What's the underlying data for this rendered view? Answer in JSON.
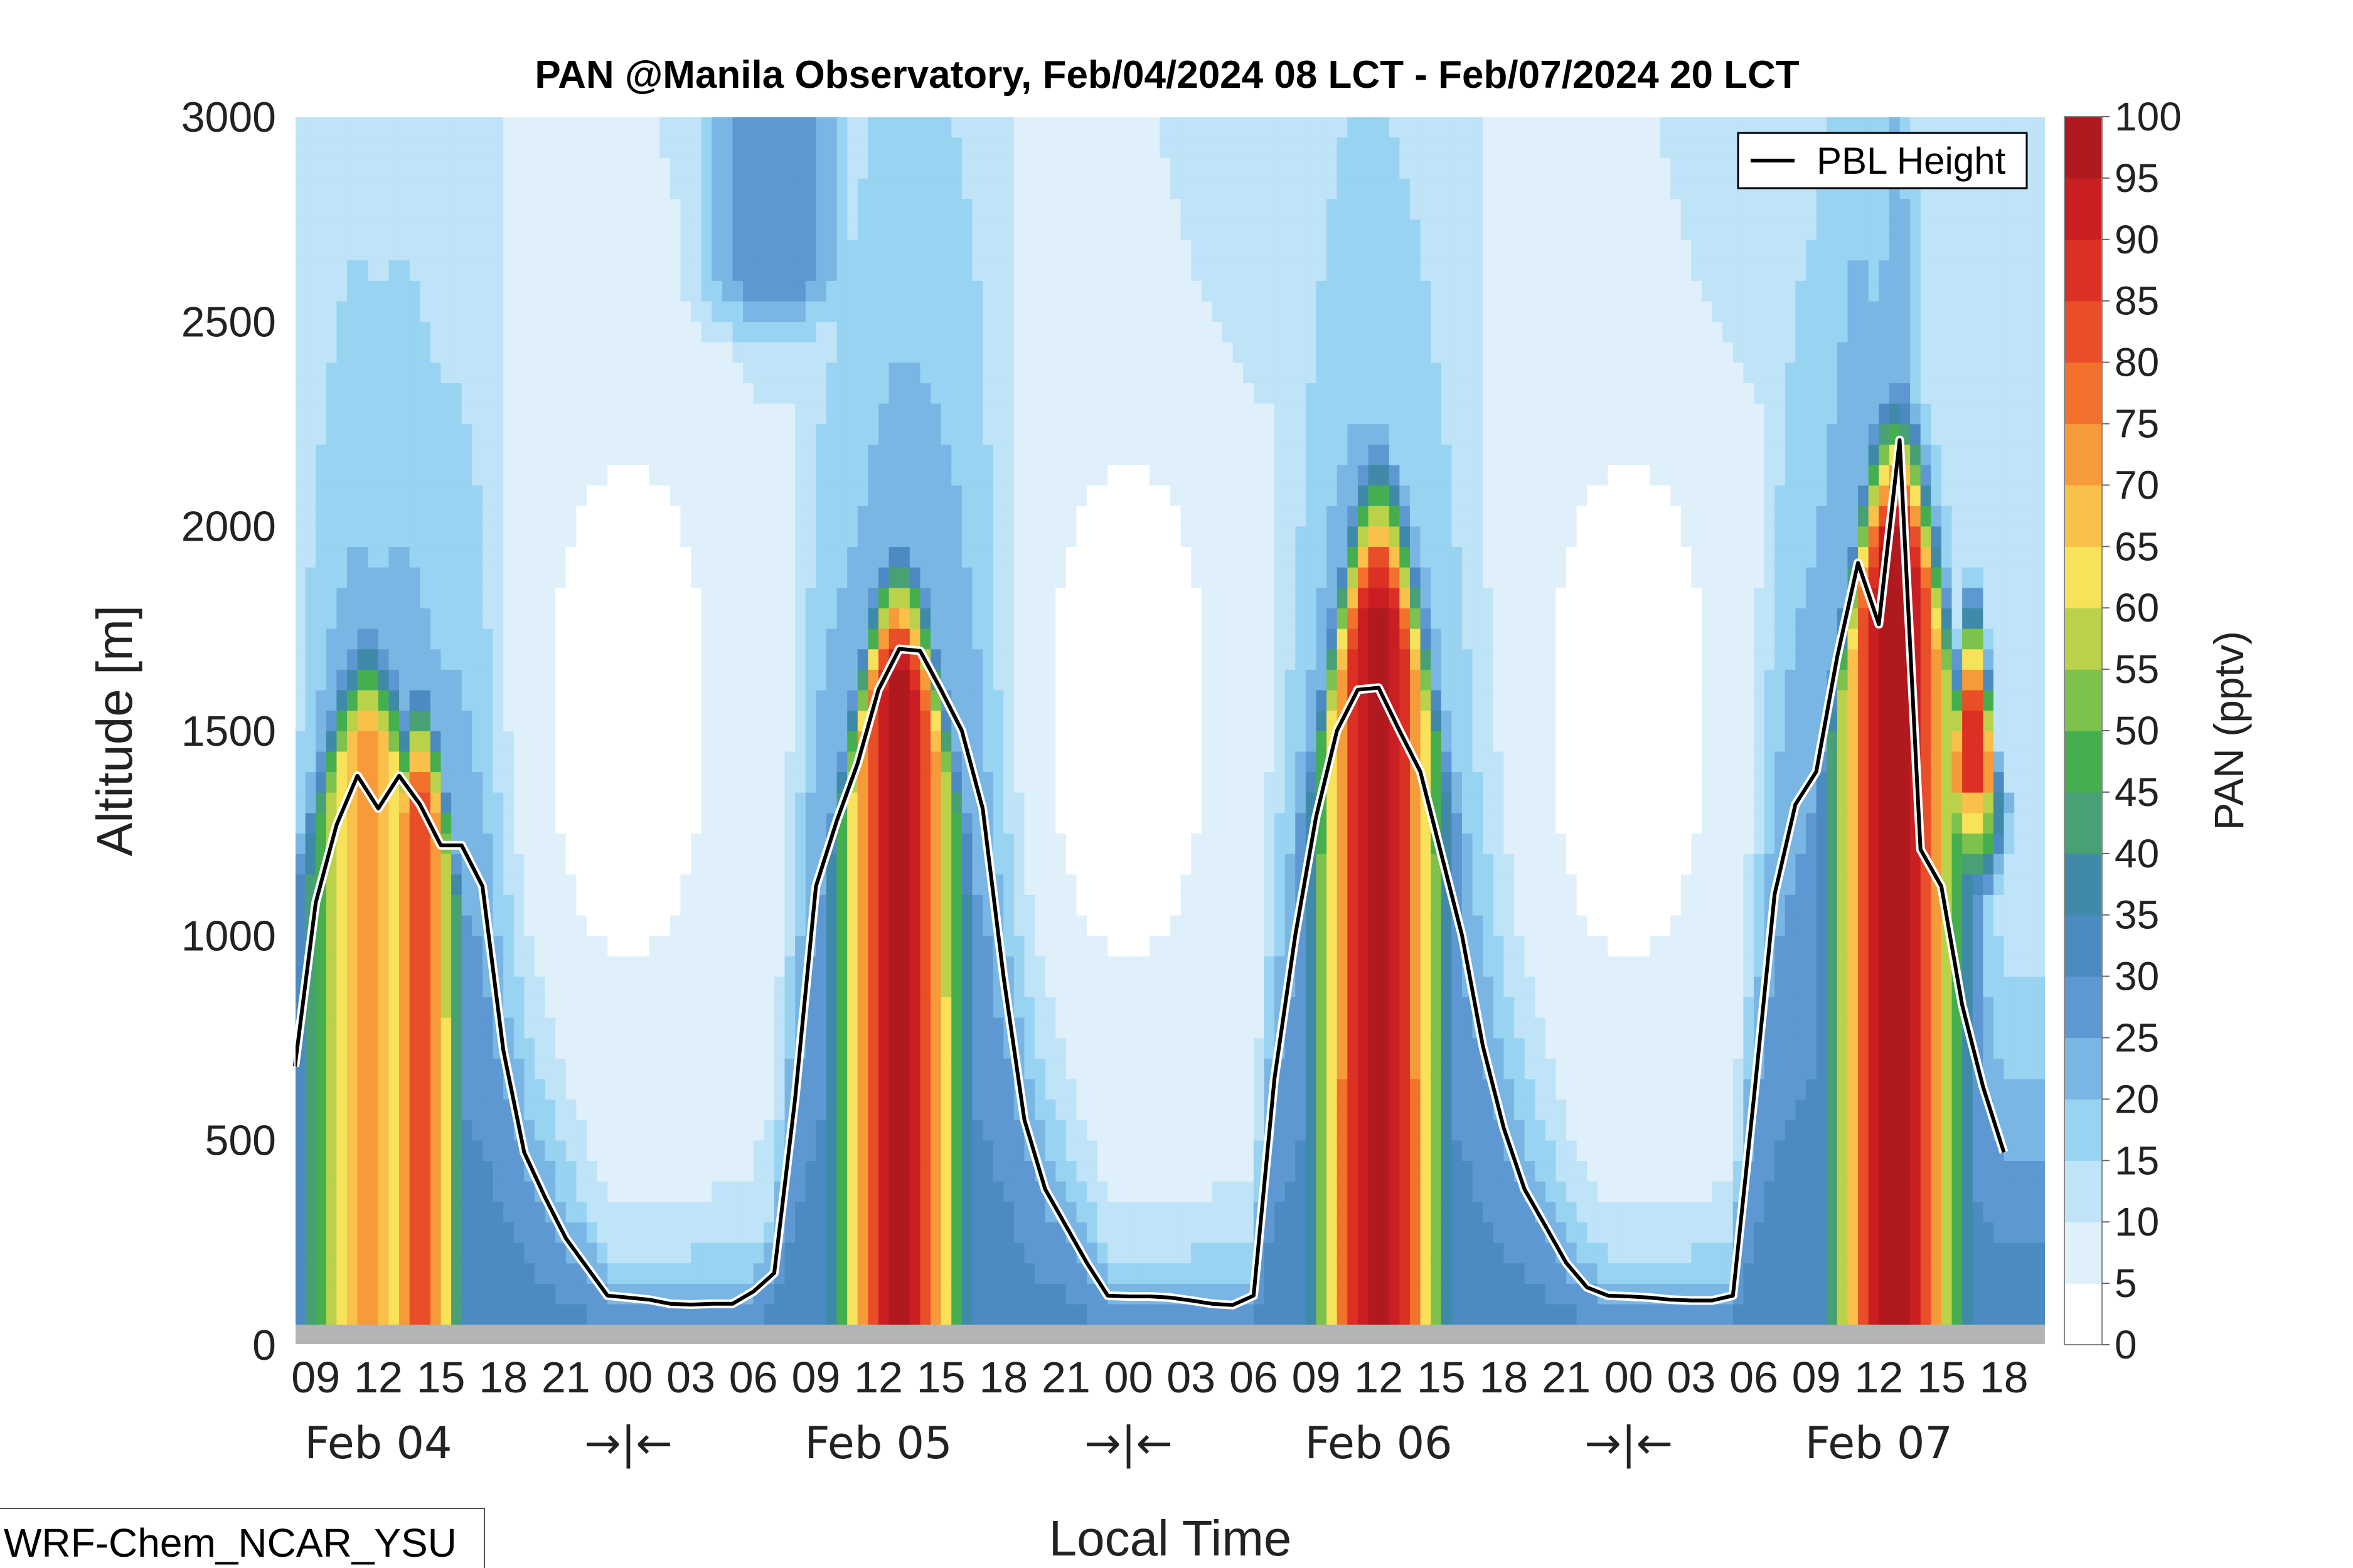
{
  "chart_data": {
    "type": "heatmap",
    "title": "PAN @Manila Observatory, Feb/04/2024 08 LCT - Feb/07/2024 20 LCT",
    "xlabel": "Local Time",
    "ylabel": "Altitude [m]",
    "ylim": [
      0,
      3000
    ],
    "y_ticks": [
      "0",
      "500",
      "1000",
      "1500",
      "2000",
      "2500",
      "3000"
    ],
    "x_range_hours": [
      0,
      84
    ],
    "x_ticks": [
      {
        "hour": 1,
        "label": "09"
      },
      {
        "hour": 4,
        "label": "12"
      },
      {
        "hour": 7,
        "label": "15"
      },
      {
        "hour": 10,
        "label": "18"
      },
      {
        "hour": 13,
        "label": "21"
      },
      {
        "hour": 16,
        "label": "00"
      },
      {
        "hour": 19,
        "label": "03"
      },
      {
        "hour": 22,
        "label": "06"
      },
      {
        "hour": 25,
        "label": "09"
      },
      {
        "hour": 28,
        "label": "12"
      },
      {
        "hour": 31,
        "label": "15"
      },
      {
        "hour": 34,
        "label": "18"
      },
      {
        "hour": 37,
        "label": "21"
      },
      {
        "hour": 40,
        "label": "00"
      },
      {
        "hour": 43,
        "label": "03"
      },
      {
        "hour": 46,
        "label": "06"
      },
      {
        "hour": 49,
        "label": "09"
      },
      {
        "hour": 52,
        "label": "12"
      },
      {
        "hour": 55,
        "label": "15"
      },
      {
        "hour": 58,
        "label": "18"
      },
      {
        "hour": 61,
        "label": "21"
      },
      {
        "hour": 64,
        "label": "00"
      },
      {
        "hour": 67,
        "label": "03"
      },
      {
        "hour": 70,
        "label": "06"
      },
      {
        "hour": 73,
        "label": "09"
      },
      {
        "hour": 76,
        "label": "12"
      },
      {
        "hour": 79,
        "label": "15"
      },
      {
        "hour": 82,
        "label": "18"
      }
    ],
    "day_labels": [
      {
        "hour": 4,
        "label": "Feb 04"
      },
      {
        "hour": 16,
        "label": "→|←"
      },
      {
        "hour": 28,
        "label": "Feb 05"
      },
      {
        "hour": 40,
        "label": "→|←"
      },
      {
        "hour": 52,
        "label": "Feb 06"
      },
      {
        "hour": 64,
        "label": "→|←"
      },
      {
        "hour": 76,
        "label": "Feb 07"
      }
    ],
    "colorbar": {
      "label": "PAN (pptv)",
      "levels": [
        0,
        5,
        10,
        15,
        20,
        25,
        30,
        35,
        40,
        45,
        50,
        55,
        60,
        65,
        70,
        75,
        80,
        85,
        90,
        95,
        100
      ],
      "tick_labels": [
        "0",
        "5",
        "10",
        "15",
        "20",
        "25",
        "30",
        "35",
        "40",
        "45",
        "50",
        "55",
        "60",
        "65",
        "70",
        "75",
        "80",
        "85",
        "90",
        "95",
        "100"
      ],
      "colors": [
        "#ffffff",
        "#dff0fb",
        "#bfe3f7",
        "#98d3f2",
        "#7ab6e4",
        "#5e98d2",
        "#4b8bc2",
        "#3f8aa8",
        "#48a075",
        "#45af50",
        "#7cc24c",
        "#b9d24a",
        "#f7e25a",
        "#f9c04a",
        "#f79a3a",
        "#f2712c",
        "#e84e27",
        "#dc3024",
        "#c91f22",
        "#b01a1f",
        "#981a1e"
      ]
    },
    "legend": {
      "position": "top-right",
      "entries": [
        "PBL Height"
      ]
    },
    "pbl_height": [
      {
        "hour": 0,
        "m": 680
      },
      {
        "hour": 1,
        "m": 1080
      },
      {
        "hour": 2,
        "m": 1270
      },
      {
        "hour": 3,
        "m": 1390
      },
      {
        "hour": 4,
        "m": 1310
      },
      {
        "hour": 5,
        "m": 1390
      },
      {
        "hour": 6,
        "m": 1320
      },
      {
        "hour": 7,
        "m": 1220
      },
      {
        "hour": 8,
        "m": 1220
      },
      {
        "hour": 9,
        "m": 1120
      },
      {
        "hour": 10,
        "m": 720
      },
      {
        "hour": 11,
        "m": 470
      },
      {
        "hour": 12,
        "m": 360
      },
      {
        "hour": 13,
        "m": 260
      },
      {
        "hour": 14,
        "m": 190
      },
      {
        "hour": 15,
        "m": 120
      },
      {
        "hour": 16,
        "m": 115
      },
      {
        "hour": 17,
        "m": 110
      },
      {
        "hour": 18,
        "m": 100
      },
      {
        "hour": 19,
        "m": 98
      },
      {
        "hour": 20,
        "m": 100
      },
      {
        "hour": 21,
        "m": 100
      },
      {
        "hour": 22,
        "m": 130
      },
      {
        "hour": 23,
        "m": 175
      },
      {
        "hour": 24,
        "m": 600
      },
      {
        "hour": 25,
        "m": 1120
      },
      {
        "hour": 26,
        "m": 1280
      },
      {
        "hour": 27,
        "m": 1420
      },
      {
        "hour": 28,
        "m": 1600
      },
      {
        "hour": 29,
        "m": 1700
      },
      {
        "hour": 30,
        "m": 1695
      },
      {
        "hour": 31,
        "m": 1600
      },
      {
        "hour": 32,
        "m": 1500
      },
      {
        "hour": 33,
        "m": 1310
      },
      {
        "hour": 34,
        "m": 900
      },
      {
        "hour": 35,
        "m": 550
      },
      {
        "hour": 36,
        "m": 380
      },
      {
        "hour": 37,
        "m": 290
      },
      {
        "hour": 38,
        "m": 200
      },
      {
        "hour": 39,
        "m": 120
      },
      {
        "hour": 40,
        "m": 118
      },
      {
        "hour": 41,
        "m": 118
      },
      {
        "hour": 42,
        "m": 115
      },
      {
        "hour": 43,
        "m": 108
      },
      {
        "hour": 44,
        "m": 100
      },
      {
        "hour": 45,
        "m": 97
      },
      {
        "hour": 46,
        "m": 120
      },
      {
        "hour": 47,
        "m": 650
      },
      {
        "hour": 48,
        "m": 1000
      },
      {
        "hour": 49,
        "m": 1290
      },
      {
        "hour": 50,
        "m": 1500
      },
      {
        "hour": 51,
        "m": 1600
      },
      {
        "hour": 52,
        "m": 1605
      },
      {
        "hour": 53,
        "m": 1500
      },
      {
        "hour": 54,
        "m": 1400
      },
      {
        "hour": 55,
        "m": 1200
      },
      {
        "hour": 56,
        "m": 1000
      },
      {
        "hour": 57,
        "m": 730
      },
      {
        "hour": 58,
        "m": 530
      },
      {
        "hour": 59,
        "m": 380
      },
      {
        "hour": 60,
        "m": 290
      },
      {
        "hour": 61,
        "m": 200
      },
      {
        "hour": 62,
        "m": 140
      },
      {
        "hour": 63,
        "m": 120
      },
      {
        "hour": 64,
        "m": 118
      },
      {
        "hour": 65,
        "m": 115
      },
      {
        "hour": 66,
        "m": 110
      },
      {
        "hour": 67,
        "m": 108
      },
      {
        "hour": 68,
        "m": 108
      },
      {
        "hour": 69,
        "m": 120
      },
      {
        "hour": 70,
        "m": 600
      },
      {
        "hour": 71,
        "m": 1100
      },
      {
        "hour": 72,
        "m": 1320
      },
      {
        "hour": 73,
        "m": 1400
      },
      {
        "hour": 74,
        "m": 1680
      },
      {
        "hour": 75,
        "m": 1910
      },
      {
        "hour": 76,
        "m": 1760
      },
      {
        "hour": 77,
        "m": 2210
      },
      {
        "hour": 78,
        "m": 1210
      },
      {
        "hour": 79,
        "m": 1120
      },
      {
        "hour": 80,
        "m": 830
      },
      {
        "hour": 81,
        "m": 630
      },
      {
        "hour": 82,
        "m": 470
      }
    ],
    "pan_peaks": [
      {
        "hour": 3.5,
        "width_h": 3.6,
        "top_m": 1800,
        "peak_pptv": 72,
        "bottom_m": 0
      },
      {
        "hour": 6.0,
        "width_h": 2.2,
        "top_m": 1650,
        "peak_pptv": 84,
        "bottom_m": 0
      },
      {
        "hour": 29.0,
        "width_h": 3.3,
        "top_m": 2000,
        "peak_pptv": 97,
        "bottom_m": 0
      },
      {
        "hour": 52.0,
        "width_h": 3.4,
        "top_m": 2220,
        "peak_pptv": 98,
        "bottom_m": 0
      },
      {
        "hour": 76.8,
        "width_h": 3.4,
        "top_m": 2380,
        "peak_pptv": 100,
        "bottom_m": 0
      },
      {
        "hour": 80.5,
        "width_h": 1.6,
        "top_m": 1900,
        "peak_pptv": 90,
        "bottom_m": 1350
      }
    ],
    "nocturnal_pptv": 10,
    "upper_band_pptv": 13,
    "upper_tongues": [
      {
        "hour": 23.0,
        "width_h": 4.5,
        "top_m": 3000,
        "bottom_m": 2300,
        "peak_pptv": 30
      },
      {
        "hour": 47.5,
        "width_h": 3.5,
        "top_m": 3000,
        "bottom_m": 2500,
        "peak_pptv": 14
      }
    ]
  },
  "model_label": "WRF-Chem_NCAR_YSU",
  "colors": {
    "ground": "#b4b4b4",
    "pbl_line": "#000000",
    "pbl_halo": "#ffffff"
  }
}
